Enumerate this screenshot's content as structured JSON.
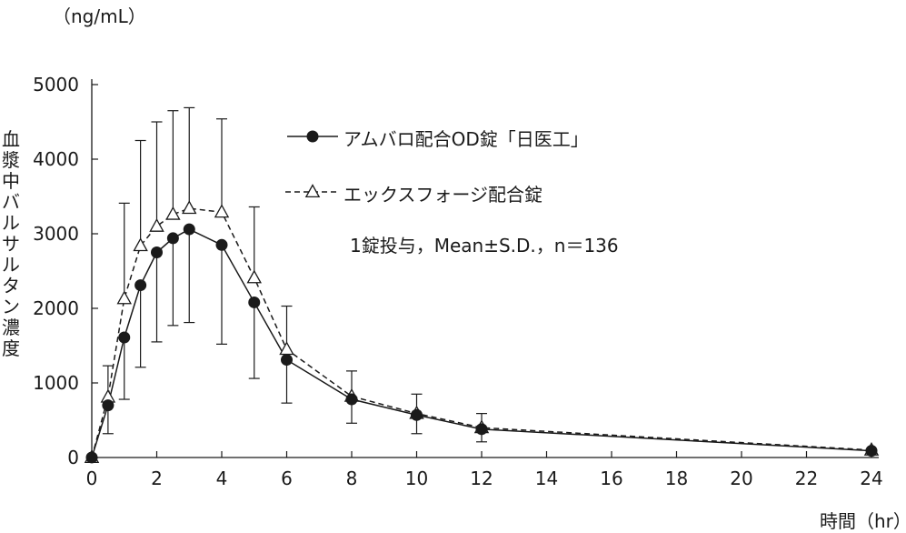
{
  "chart_data": {
    "type": "line",
    "ylabel_unit": "（ng/mL）",
    "ylabel": "血漿中バルサルタン濃度",
    "xlabel": "時間（hr）",
    "note": "1錠投与，Mean±S.D.，n＝136",
    "xlim": [
      0,
      24
    ],
    "ylim": [
      0,
      5000
    ],
    "xticks": [
      0,
      2,
      4,
      6,
      8,
      10,
      12,
      14,
      16,
      18,
      20,
      22,
      24
    ],
    "yticks": [
      0,
      1000,
      2000,
      3000,
      4000,
      5000
    ],
    "legend_position": "top-right",
    "series": [
      {
        "name": "アムバロ配合OD錠「日医工」",
        "marker": "filled-circle",
        "line": "solid",
        "color": "#1a1a1a",
        "x": [
          0,
          0.5,
          1,
          1.5,
          2,
          2.5,
          3,
          4,
          5,
          6,
          8,
          10,
          12,
          24
        ],
        "y": [
          0,
          700,
          1610,
          2310,
          2750,
          2940,
          3060,
          2850,
          2080,
          1310,
          780,
          570,
          380,
          90
        ],
        "sd": [
          0,
          380,
          830,
          1100,
          1200,
          1170,
          1250,
          1330,
          1020,
          580,
          320,
          250,
          170,
          0
        ]
      },
      {
        "name": "エックスフォージ配合錠",
        "marker": "open-triangle",
        "line": "dashed",
        "color": "#1a1a1a",
        "x": [
          0,
          0.5,
          1,
          1.5,
          2,
          2.5,
          3,
          4,
          5,
          6,
          8,
          10,
          12,
          24
        ],
        "y": [
          0,
          810,
          2130,
          2840,
          3100,
          3260,
          3340,
          3290,
          2410,
          1450,
          820,
          590,
          400,
          100
        ],
        "sd": [
          0,
          420,
          1280,
          1410,
          1400,
          1390,
          1350,
          1250,
          950,
          580,
          340,
          260,
          190,
          0
        ]
      }
    ]
  }
}
